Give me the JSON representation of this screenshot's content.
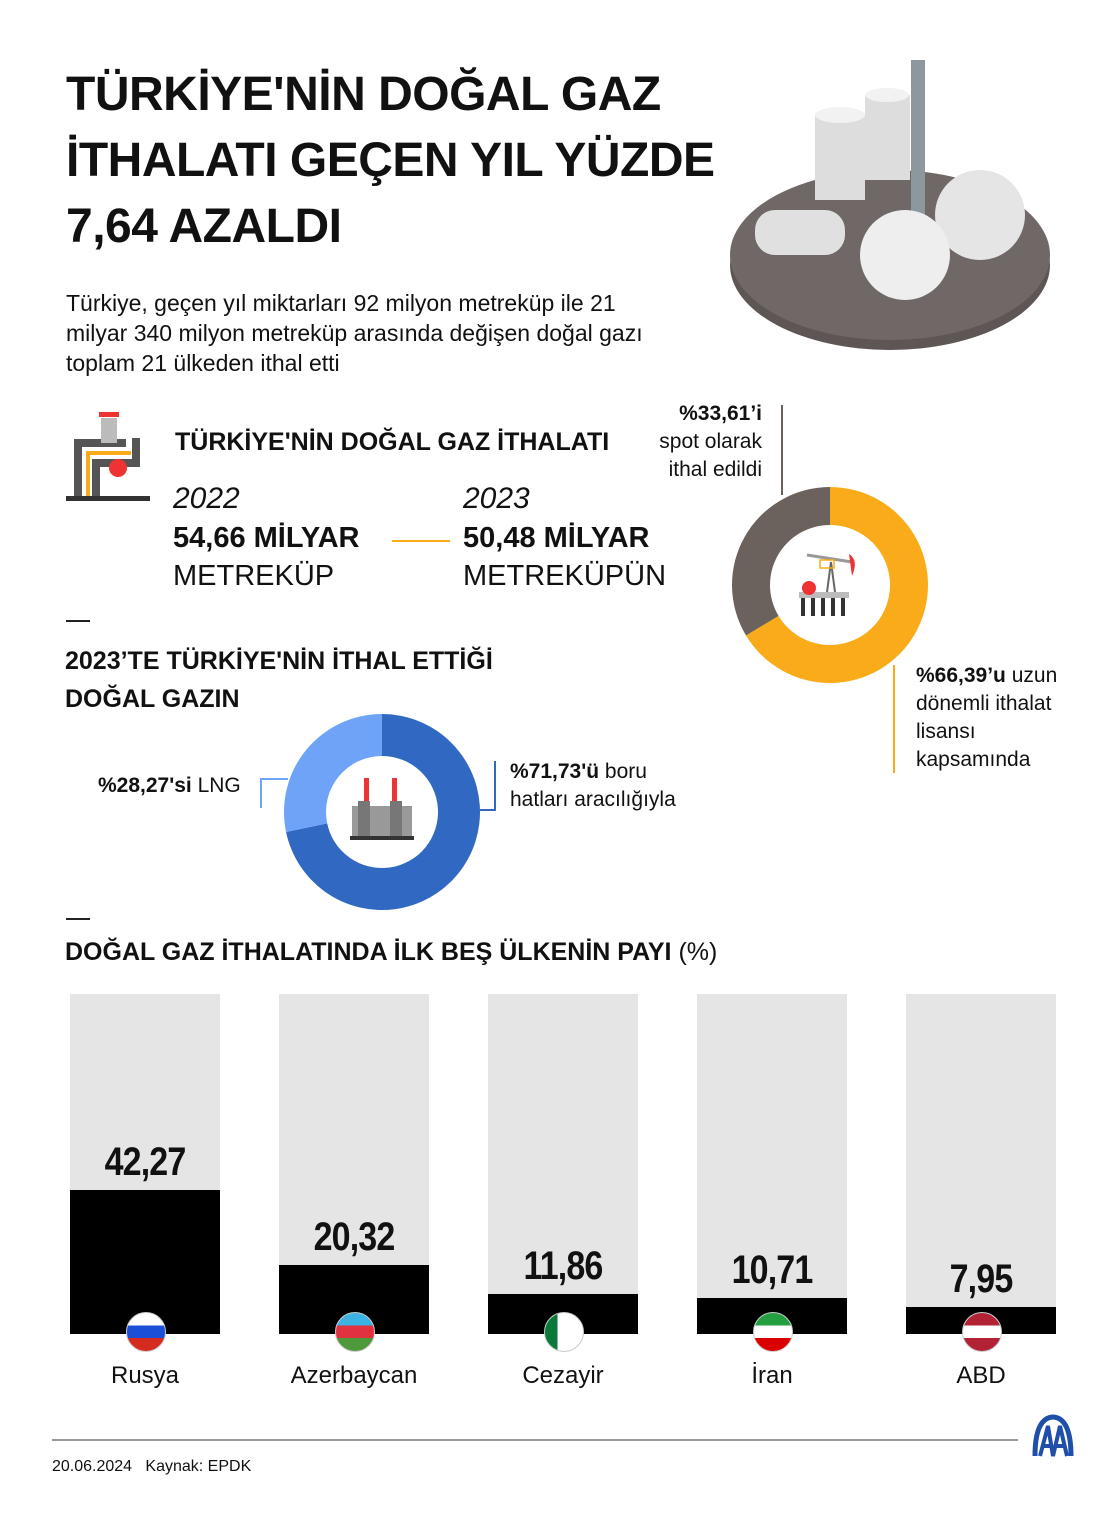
{
  "header": {
    "title": "TÜRKİYE'NİN DOĞAL GAZ İTHALATI GEÇEN YIL YÜZDE 7,64 AZALDI",
    "subtitle": "Türkiye, geçen yıl miktarları 92 milyon metreküp ile 21 milyar 340 milyon metreküp arasında değişen doğal gazı toplam 21 ülkeden ithal etti"
  },
  "imports": {
    "heading": "TÜRKİYE'NİN DOĞAL GAZ İTHALATI",
    "y1": "2022",
    "v1": "54,66 MİLYAR",
    "u1": "METREKÜP",
    "y2": "2023",
    "v2": "50,48 MİLYAR",
    "u2": "METREKÜPÜN"
  },
  "donut_contract": {
    "spot_pct": "%33,61’i",
    "spot_text1": "spot olarak",
    "spot_text2": "ithal edildi",
    "long_pct": "%66,39’u",
    "long_text": "uzun dönemli ithalat lisansı kapsamında",
    "colors": {
      "spot": "#6b625e",
      "long": "#f9ab1a"
    }
  },
  "type_section": {
    "heading1": "2023’TE TÜRKİYE'NİN İTHAL ETTİĞİ",
    "heading2": "DOĞAL GAZIN",
    "lng_pct": "%28,27'si",
    "lng_text": "LNG",
    "pipe_pct": "%71,73'ü",
    "pipe_text1": "boru",
    "pipe_text2": "hatları aracılığıyla",
    "colors": {
      "pipe": "#3168c2",
      "lng": "#6ea3f7"
    }
  },
  "chart_data": [
    {
      "type": "pie",
      "donut": true,
      "slices": [
        {
          "label": "uzun dönemli ithalat lisansı",
          "value": 66.39
        },
        {
          "label": "spot",
          "value": 33.61
        }
      ]
    },
    {
      "type": "pie",
      "donut": true,
      "slices": [
        {
          "label": "boru hatları",
          "value": 71.73
        },
        {
          "label": "LNG",
          "value": 28.27
        }
      ]
    },
    {
      "type": "bar",
      "title": "DOĞAL GAZ İTHALATINDA İLK BEŞ ÜLKENİN PAYI",
      "title_unit": "(%)",
      "categories": [
        "Rusya",
        "Azerbaycan",
        "Cezayir",
        "İran",
        "ABD"
      ],
      "values": [
        42.27,
        20.32,
        11.86,
        10.71,
        7.95
      ],
      "labels": [
        "42,27",
        "20,32",
        "11,86",
        "10,71",
        "7,95"
      ],
      "ylim": [
        0,
        100
      ],
      "colors": {
        "bar": "#000000",
        "background": "#e5e5e5"
      }
    }
  ],
  "footer": {
    "date": "20.06.2024",
    "source": "Kaynak: EPDK"
  }
}
